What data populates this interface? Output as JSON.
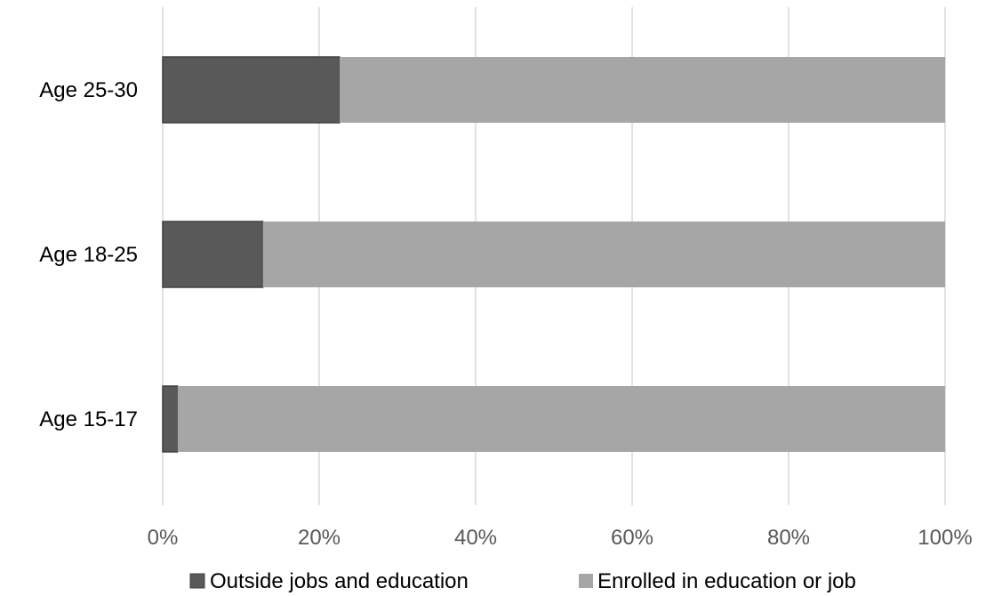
{
  "chart_data": {
    "type": "bar",
    "orientation": "horizontal",
    "stacked": true,
    "title": "",
    "xlabel": "",
    "ylabel": "",
    "categories": [
      "Age 25-30",
      "Age 18-25",
      "Age 15-17"
    ],
    "series": [
      {
        "name": "Outside jobs and education",
        "values": [
          22.6,
          12.8,
          1.9
        ],
        "color": "#595959"
      },
      {
        "name": "Enrolled in education or job",
        "values": [
          77.4,
          87.2,
          98.1
        ],
        "color": "#a6a6a6"
      }
    ],
    "x_ticks": [
      "0%",
      "20%",
      "40%",
      "60%",
      "80%",
      "100%"
    ],
    "xlim": [
      0,
      100
    ],
    "grid": true,
    "legend_position": "bottom"
  }
}
